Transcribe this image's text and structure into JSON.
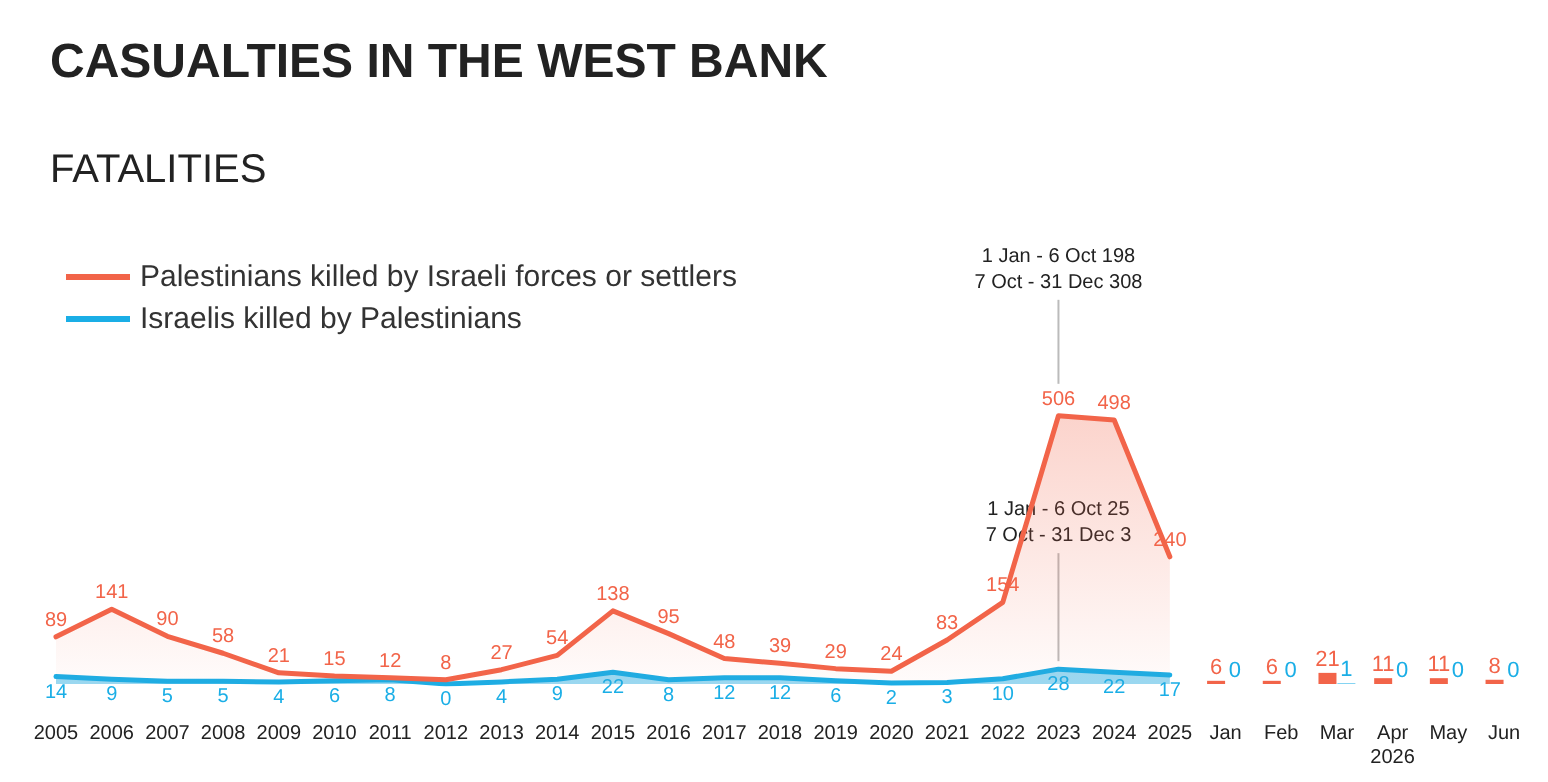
{
  "chart_data": {
    "type": "area",
    "title": "CASUALTIES IN THE WEST BANK",
    "subtitle": "FATALITIES",
    "categories": [
      "2005",
      "2006",
      "2007",
      "2008",
      "2009",
      "2010",
      "2011",
      "2012",
      "2013",
      "2014",
      "2015",
      "2016",
      "2017",
      "2018",
      "2019",
      "2020",
      "2021",
      "2022",
      "2023",
      "2024",
      "2025",
      "Jan",
      "Feb",
      "Mar",
      "Apr",
      "May",
      "Jun"
    ],
    "series": [
      {
        "name": "Palestinians killed by Israeli forces or settlers",
        "color": "#f26449",
        "values": [
          89,
          141,
          90,
          58,
          21,
          15,
          12,
          8,
          27,
          54,
          138,
          95,
          48,
          39,
          29,
          24,
          83,
          154,
          506,
          498,
          240,
          null,
          null,
          null,
          null,
          null,
          null
        ]
      },
      {
        "name": "Israelis killed by Palestinians",
        "color": "#1aaee6",
        "values": [
          14,
          9,
          5,
          5,
          4,
          6,
          8,
          0,
          4,
          9,
          22,
          8,
          12,
          12,
          6,
          2,
          3,
          10,
          28,
          22,
          17,
          null,
          null,
          null,
          null,
          null,
          null
        ]
      },
      {
        "type": "bar",
        "color": "#f26449",
        "values": [
          null,
          null,
          null,
          null,
          null,
          null,
          null,
          null,
          null,
          null,
          null,
          null,
          null,
          null,
          null,
          null,
          null,
          null,
          null,
          null,
          null,
          6,
          6,
          21,
          11,
          11,
          8
        ]
      },
      {
        "type": "bar",
        "color": "#1aaee6",
        "values": [
          null,
          null,
          null,
          null,
          null,
          null,
          null,
          null,
          null,
          null,
          null,
          null,
          null,
          null,
          null,
          null,
          null,
          null,
          null,
          null,
          null,
          0,
          0,
          1,
          0,
          0,
          0
        ]
      }
    ],
    "data_labels": true,
    "legend": "top left",
    "grid": false,
    "annotations": [
      "1 Jan - 6 Oct 198\n7 Oct - 31 Dec 308",
      "1 Jan - 6 Oct 25\n7 Oct - 31 Dec 3",
      "2026"
    ]
  }
}
